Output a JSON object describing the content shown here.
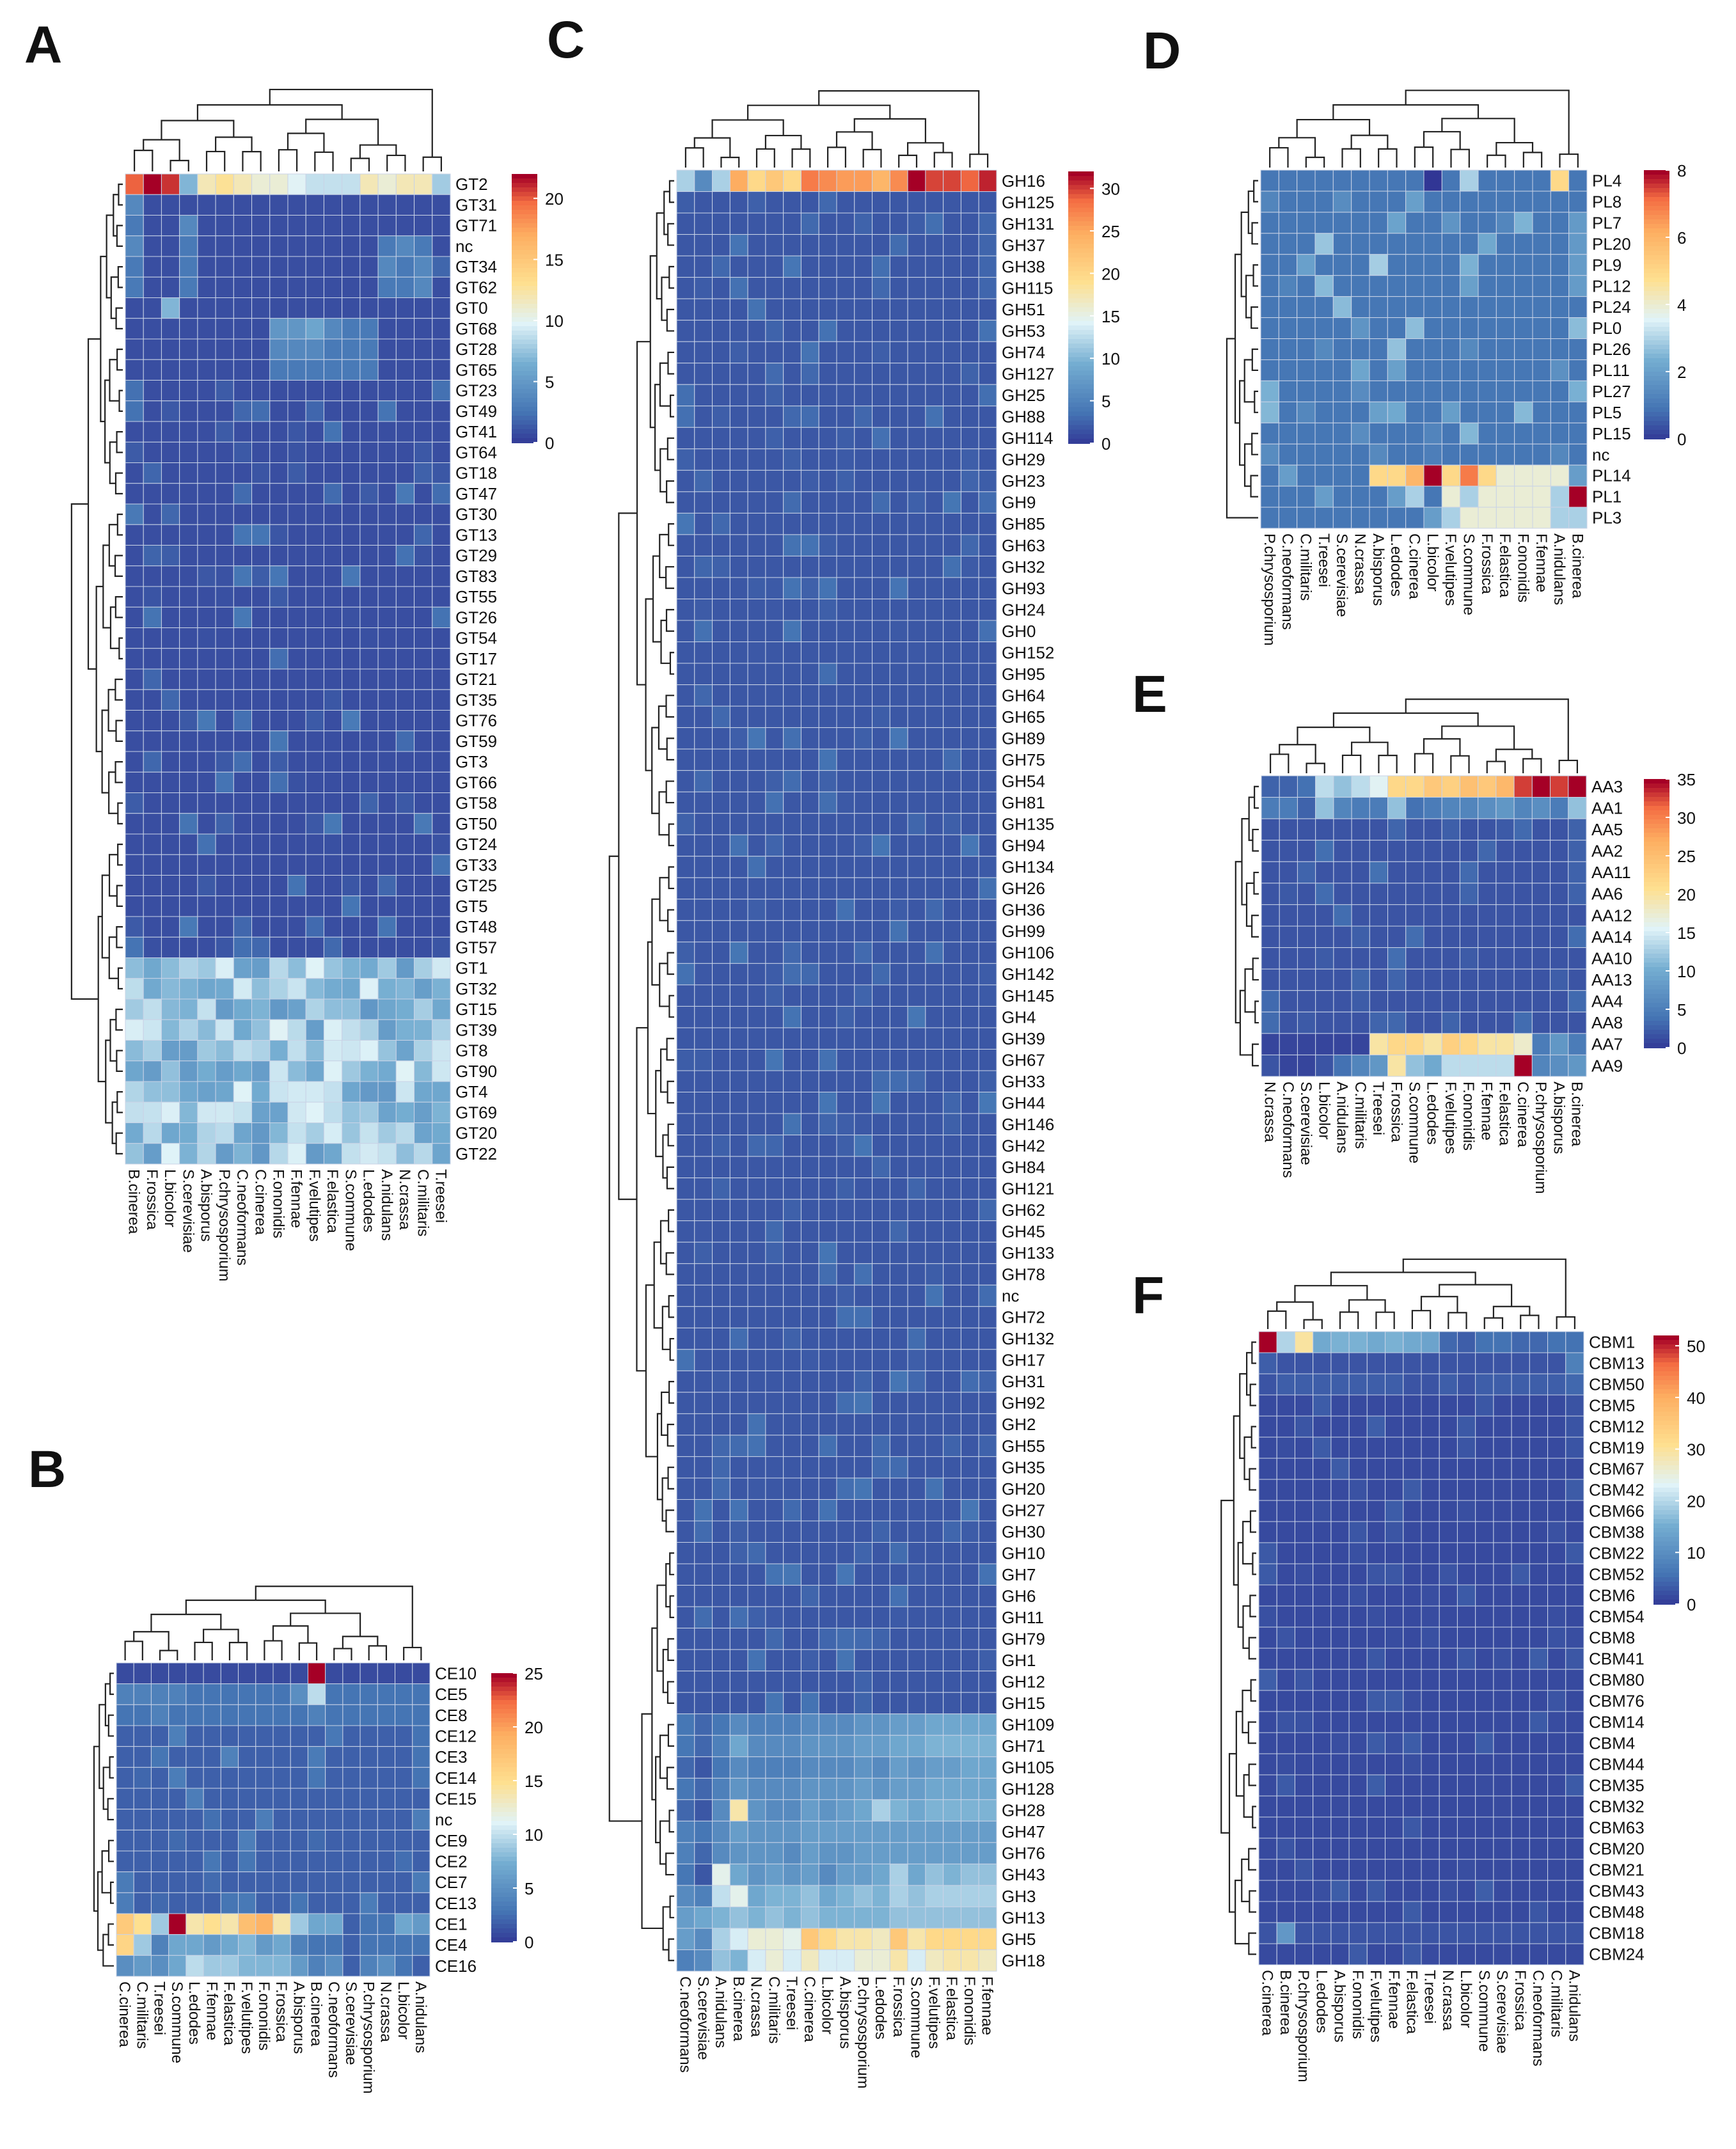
{
  "chart_data": [
    {
      "panel": "A",
      "type": "heatmap",
      "columns": [
        "B.cinerea",
        "F.rossica",
        "L.bicolor",
        "S.cerevisiae",
        "A.bisporus",
        "P.chrysosporium",
        "C.neoformans",
        "C.cinerea",
        "F.ononidis",
        "F.fennae",
        "F.velutipes",
        "F.elastica",
        "S.commune",
        "L.edodes",
        "A.nidulans",
        "N.crassa",
        "C.militaris",
        "T.reesei"
      ],
      "rows": [
        "GT2",
        "GT31",
        "GT71",
        "nc",
        "GT34",
        "GT62",
        "GT0",
        "GT68",
        "GT28",
        "GT65",
        "GT23",
        "GT49",
        "GT41",
        "GT64",
        "GT18",
        "GT47",
        "GT30",
        "GT13",
        "GT29",
        "GT83",
        "GT55",
        "GT26",
        "GT54",
        "GT17",
        "GT21",
        "GT35",
        "GT76",
        "GT59",
        "GT3",
        "GT66",
        "GT58",
        "GT50",
        "GT24",
        "GT33",
        "GT25",
        "GT5",
        "GT48",
        "GT57",
        "GT1",
        "GT32",
        "GT15",
        "GT39",
        "GT8",
        "GT90",
        "GT4",
        "GT69",
        "GT20",
        "GT22"
      ],
      "row_values": {
        "GT2": [
          20,
          22,
          21,
          7,
          12,
          13,
          12,
          11,
          11,
          10,
          9,
          9,
          9,
          12,
          11,
          12,
          12,
          8
        ],
        "GT31": [
          4,
          1,
          1,
          1,
          1,
          1,
          1,
          1,
          1,
          1,
          1,
          1,
          1,
          1,
          1,
          1,
          1,
          1
        ],
        "GT71": [
          3,
          1,
          1,
          4,
          1,
          1,
          1,
          1,
          1,
          1,
          1,
          1,
          1,
          1,
          1,
          1,
          1,
          1
        ],
        "nc": [
          4,
          1,
          1,
          3,
          1,
          1,
          1,
          1,
          1,
          1,
          1,
          1,
          1,
          1,
          3,
          4,
          3,
          1
        ],
        "GT34": [
          3,
          1,
          1,
          3,
          1,
          1,
          1,
          1,
          1,
          1,
          1,
          1,
          1,
          1,
          4,
          3,
          4,
          2
        ],
        "GT62": [
          3,
          1,
          1,
          3,
          1,
          1,
          1,
          1,
          1,
          1,
          1,
          1,
          1,
          1,
          3,
          3,
          4,
          1
        ],
        "GT0": [
          1,
          1,
          7,
          1,
          1,
          1,
          1,
          1,
          1,
          1,
          1,
          1,
          1,
          1,
          1,
          1,
          1,
          1
        ],
        "GT68": [
          1,
          1,
          1,
          1,
          1,
          1,
          1,
          1,
          5,
          5,
          6,
          4,
          3,
          3,
          1,
          1,
          1,
          1
        ],
        "GT28": [
          1,
          1,
          1,
          1,
          1,
          1,
          1,
          1,
          4,
          4,
          4,
          3,
          3,
          3,
          1,
          1,
          1,
          1
        ],
        "GT65": [
          1,
          1,
          1,
          1,
          1,
          1,
          1,
          1,
          3,
          3,
          3,
          3,
          3,
          3,
          1,
          1,
          1,
          1
        ]
      },
      "default_row_value": 1,
      "lower_block_rows": [
        "GT1",
        "GT32",
        "GT15",
        "GT39",
        "GT8",
        "GT90",
        "GT4",
        "GT69",
        "GT20",
        "GT22"
      ],
      "colorbar_ticks": [
        0,
        5,
        10,
        15,
        20
      ],
      "vmax": 22
    },
    {
      "panel": "B",
      "type": "heatmap",
      "columns": [
        "C.cinerea",
        "C.militaris",
        "T.reesei",
        "S.commune",
        "L.edodes",
        "F.fennae",
        "F.elastica",
        "F.velutipes",
        "F.ononidis",
        "F.rossica",
        "A.bisporus",
        "B.cinerea",
        "C.neoformans",
        "S.cerevisiae",
        "P.chrysosporium",
        "N.crassa",
        "L.bicolor",
        "A.nidulans"
      ],
      "rows": [
        "CE10",
        "CE5",
        "CE8",
        "CE12",
        "CE3",
        "CE14",
        "CE15",
        "nc",
        "CE9",
        "CE2",
        "CE7",
        "CE13",
        "CE1",
        "CE4",
        "CE16"
      ],
      "row_values": {
        "CE10": [
          1,
          1,
          1,
          1,
          1,
          1,
          1,
          1,
          1,
          1,
          1,
          25,
          1,
          1,
          1,
          1,
          1,
          1
        ],
        "CE5": [
          4,
          4,
          4,
          4,
          3,
          3,
          3,
          3,
          3,
          3,
          5,
          10,
          3,
          3,
          3,
          3,
          3,
          3
        ],
        "CE8": [
          3,
          3,
          4,
          3,
          3,
          3,
          3,
          3,
          3,
          3,
          3,
          4,
          3,
          3,
          3,
          3,
          3,
          3
        ],
        "CE1": [
          17,
          15,
          9,
          25,
          14,
          15,
          14,
          18,
          19,
          14,
          9,
          7,
          7,
          2,
          3,
          3,
          7,
          6
        ],
        "CE4": [
          16,
          9,
          4,
          7,
          7,
          6,
          7,
          8,
          6,
          7,
          4,
          3,
          3,
          2,
          3,
          3,
          3,
          3
        ],
        "CE16": [
          5,
          6,
          5,
          7,
          10,
          9,
          9,
          8,
          8,
          8,
          6,
          4,
          5,
          2,
          4,
          5,
          3,
          2
        ]
      },
      "default_row_value": 2,
      "colorbar_ticks": [
        0,
        5,
        10,
        15,
        20,
        25
      ],
      "vmax": 25
    },
    {
      "panel": "C",
      "type": "heatmap",
      "columns": [
        "C.neoformans",
        "S.cerevisiae",
        "A.nidulans",
        "B.cinerea",
        "N.crassa",
        "C.militaris",
        "T.reesei",
        "C.cinerea",
        "L.bicolor",
        "A.bisporus",
        "P.chrysosporium",
        "L.edodes",
        "F.rossica",
        "S.commune",
        "F.velutipes",
        "F.elastica",
        "F.ononidis",
        "F.fennae"
      ],
      "rows": [
        "GH16",
        "GH125",
        "GH131",
        "GH37",
        "GH38",
        "GH115",
        "GH51",
        "GH53",
        "GH74",
        "GH127",
        "GH25",
        "GH88",
        "GH114",
        "GH29",
        "GH23",
        "GH9",
        "GH85",
        "GH63",
        "GH32",
        "GH93",
        "GH24",
        "GH0",
        "GH152",
        "GH95",
        "GH64",
        "GH65",
        "GH89",
        "GH75",
        "GH54",
        "GH81",
        "GH135",
        "GH94",
        "GH134",
        "GH26",
        "GH36",
        "GH99",
        "GH106",
        "GH142",
        "GH145",
        "GH4",
        "GH39",
        "GH67",
        "GH33",
        "GH44",
        "GH146",
        "GH42",
        "GH84",
        "GH121",
        "GH62",
        "GH45",
        "GH133",
        "GH78",
        "nc",
        "GH72",
        "GH132",
        "GH17",
        "GH31",
        "GH92",
        "GH2",
        "GH55",
        "GH35",
        "GH20",
        "GH27",
        "GH30",
        "GH10",
        "GH7",
        "GH6",
        "GH11",
        "GH79",
        "GH1",
        "GH12",
        "GH15",
        "GH109",
        "GH71",
        "GH105",
        "GH128",
        "GH28",
        "GH47",
        "GH76",
        "GH43",
        "GH3",
        "GH13",
        "GH5",
        "GH18"
      ],
      "row_values": {
        "GH16": [
          12,
          6,
          12,
          25,
          20,
          22,
          20,
          28,
          27,
          26,
          26,
          24,
          27,
          32,
          30,
          30,
          29,
          31
        ],
        "GH109": [
          4,
          3,
          4,
          6,
          5,
          5,
          5,
          6,
          6,
          6,
          7,
          7,
          8,
          8,
          9,
          9,
          9,
          9
        ],
        "GH71": [
          4,
          3,
          5,
          9,
          6,
          6,
          6,
          7,
          7,
          7,
          8,
          8,
          9,
          9,
          10,
          10,
          10,
          10
        ],
        "GH105": [
          3,
          2,
          4,
          6,
          5,
          5,
          5,
          6,
          6,
          6,
          7,
          6,
          8,
          7,
          8,
          8,
          9,
          9
        ],
        "GH128": [
          4,
          3,
          5,
          7,
          6,
          6,
          6,
          7,
          7,
          7,
          8,
          7,
          8,
          8,
          9,
          9,
          9,
          9
        ],
        "GH28": [
          3,
          2,
          6,
          18,
          7,
          6,
          6,
          8,
          7,
          8,
          9,
          12,
          10,
          9,
          10,
          10,
          10,
          10
        ],
        "GH47": [
          5,
          4,
          6,
          8,
          7,
          7,
          7,
          8,
          8,
          8,
          8,
          8,
          8,
          8,
          8,
          8,
          8,
          8
        ],
        "GH76": [
          5,
          3,
          6,
          7,
          7,
          7,
          6,
          8,
          7,
          7,
          8,
          8,
          8,
          8,
          8,
          8,
          8,
          8
        ],
        "GH43": [
          4,
          2,
          15,
          9,
          7,
          8,
          7,
          8,
          6,
          8,
          8,
          9,
          12,
          9,
          11,
          10,
          11,
          11
        ],
        "GH3": [
          6,
          5,
          13,
          15,
          9,
          10,
          10,
          11,
          9,
          10,
          11,
          10,
          12,
          11,
          12,
          12,
          12,
          12
        ],
        "GH13": [
          8,
          9,
          10,
          11,
          10,
          11,
          10,
          11,
          10,
          10,
          10,
          10,
          11,
          11,
          11,
          11,
          11,
          11
        ],
        "GH5": [
          8,
          6,
          12,
          14,
          16,
          16,
          15,
          22,
          20,
          18,
          18,
          17,
          22,
          18,
          20,
          20,
          20,
          20
        ],
        "GH18": [
          5,
          6,
          11,
          10,
          14,
          16,
          14,
          17,
          14,
          14,
          16,
          16,
          18,
          14,
          17,
          18,
          18,
          17
        ]
      },
      "default_row_value": 2,
      "colorbar_ticks": [
        0,
        5,
        10,
        15,
        20,
        25,
        30
      ],
      "vmax": 32
    },
    {
      "panel": "D",
      "type": "heatmap",
      "columns": [
        "P.chrysosporium",
        "C.neoformans",
        "C.militaris",
        "T.reesei",
        "S.cerevisiae",
        "N.crassa",
        "A.bisporus",
        "L.edodes",
        "C.cinerea",
        "L.bicolor",
        "F.velutipes",
        "S.commune",
        "F.rossica",
        "F.elastica",
        "F.ononidis",
        "F.fennae",
        "A.nidulans",
        "B.cinerea"
      ],
      "rows": [
        "PL4",
        "PL8",
        "PL7",
        "PL20",
        "PL9",
        "PL12",
        "PL24",
        "PL0",
        "PL26",
        "PL11",
        "PL27",
        "PL5",
        "PL15",
        "nc",
        "PL14",
        "PL1",
        "PL3"
      ],
      "row_values": {
        "PL4": [
          1,
          1,
          1,
          1,
          1,
          1,
          1,
          1,
          1,
          0,
          1,
          3,
          1,
          1,
          1,
          1,
          5,
          1
        ],
        "PL14": [
          1,
          2,
          1,
          1,
          1,
          1,
          5,
          5,
          6,
          8,
          5,
          7,
          5,
          4,
          4,
          4,
          4,
          2
        ],
        "PL1": [
          1,
          1,
          1,
          2,
          1,
          1,
          1,
          2,
          3,
          1,
          4,
          3,
          4,
          4,
          4,
          4,
          3,
          8
        ],
        "PL3": [
          1,
          1,
          1,
          1,
          1,
          1,
          1,
          1,
          1,
          2,
          3,
          4,
          4,
          4,
          4,
          4,
          3,
          3
        ]
      },
      "default_row_value": 1,
      "colorbar_ticks": [
        0,
        2,
        4,
        6,
        8
      ],
      "vmax": 8
    },
    {
      "panel": "E",
      "type": "heatmap",
      "columns": [
        "N.crassa",
        "C.neoformans",
        "S.cerevisiae",
        "L.bicolor",
        "A.nidulans",
        "C.militaris",
        "T.reesei",
        "F.rossica",
        "S.commune",
        "L.edodes",
        "F.velutipes",
        "F.ononidis",
        "F.fennae",
        "F.elastica",
        "C.cinerea",
        "P.chrysosporium",
        "A.bisporus",
        "B.cinerea"
      ],
      "rows": [
        "AA3",
        "AA1",
        "AA5",
        "AA2",
        "AA11",
        "AA6",
        "AA12",
        "AA14",
        "AA10",
        "AA13",
        "AA4",
        "AA8",
        "AA7",
        "AA9"
      ],
      "row_values": {
        "AA3": [
          3,
          3,
          4,
          14,
          12,
          14,
          16,
          22,
          22,
          24,
          23,
          25,
          24,
          26,
          33,
          35,
          33,
          35
        ],
        "AA1": [
          5,
          5,
          3,
          12,
          6,
          5,
          5,
          12,
          4,
          5,
          6,
          6,
          7,
          8,
          6,
          7,
          5,
          12
        ],
        "AA7": [
          1,
          1,
          1,
          1,
          1,
          1,
          20,
          22,
          22,
          20,
          23,
          22,
          20,
          20,
          18,
          5,
          8,
          5
        ],
        "AA9": [
          2,
          1,
          1,
          2,
          4,
          6,
          8,
          20,
          12,
          10,
          14,
          14,
          14,
          14,
          35,
          6,
          7,
          8
        ]
      },
      "default_row_value": 2,
      "colorbar_ticks": [
        0,
        5,
        10,
        15,
        20,
        25,
        30,
        35
      ],
      "vmax": 35
    },
    {
      "panel": "F",
      "type": "heatmap",
      "columns": [
        "C.cinerea",
        "B.cinerea",
        "P.chrysosporium",
        "L.edodes",
        "A.bisporus",
        "F.ononidis",
        "F.velutipes",
        "F.fennae",
        "F.elastica",
        "T.reesei",
        "N.crassa",
        "L.bicolor",
        "S.commune",
        "S.cerevisiae",
        "F.rossica",
        "C.neoformans",
        "C.militaris",
        "A.nidulans"
      ],
      "rows": [
        "CBM1",
        "CBM13",
        "CBM50",
        "CBM5",
        "CBM12",
        "CBM19",
        "CBM67",
        "CBM42",
        "CBM66",
        "CBM38",
        "CBM22",
        "CBM52",
        "CBM6",
        "CBM54",
        "CBM8",
        "CBM41",
        "CBM80",
        "CBM76",
        "CBM14",
        "CBM4",
        "CBM44",
        "CBM35",
        "CBM32",
        "CBM63",
        "CBM20",
        "CBM21",
        "CBM43",
        "CBM48",
        "CBM18",
        "CBM24"
      ],
      "row_values": {
        "CBM1": [
          52,
          20,
          30,
          15,
          16,
          16,
          15,
          16,
          15,
          14,
          5,
          4,
          6,
          6,
          5,
          5,
          6,
          6
        ],
        "CBM13": [
          4,
          3,
          3,
          3,
          3,
          3,
          3,
          3,
          3,
          3,
          3,
          3,
          3,
          3,
          3,
          3,
          3,
          8
        ],
        "CBM50": [
          3,
          4,
          4,
          4,
          4,
          4,
          4,
          4,
          3,
          3,
          4,
          3,
          4,
          4,
          4,
          4,
          4,
          5
        ],
        "CBM18": [
          3,
          12,
          3,
          3,
          3,
          3,
          3,
          3,
          3,
          3,
          3,
          3,
          3,
          3,
          3,
          3,
          3,
          3
        ]
      },
      "default_row_value": 2,
      "colorbar_ticks": [
        0,
        10,
        20,
        30,
        40,
        50
      ],
      "vmax": 52
    }
  ]
}
